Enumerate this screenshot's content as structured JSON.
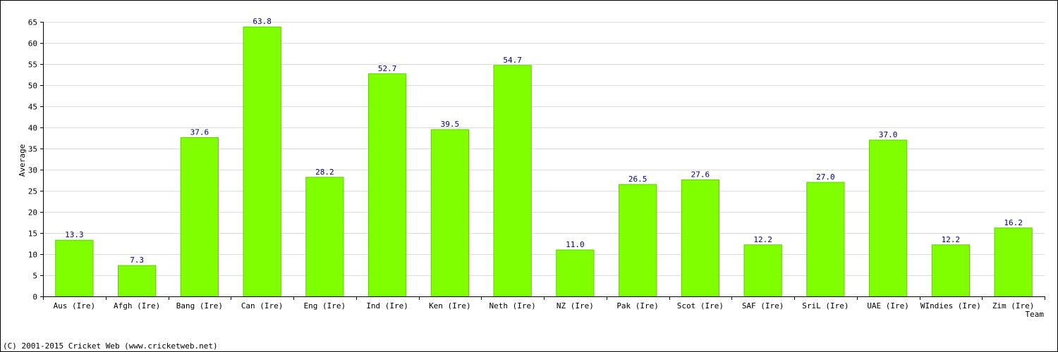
{
  "chart_data": {
    "type": "bar",
    "xlabel": "Team",
    "ylabel": "Average",
    "ylim": [
      0,
      65
    ],
    "ytick_step": 5,
    "grid": true,
    "categories": [
      "Aus (Ire)",
      "Afgh (Ire)",
      "Bang (Ire)",
      "Can (Ire)",
      "Eng (Ire)",
      "Ind (Ire)",
      "Ken (Ire)",
      "Neth (Ire)",
      "NZ (Ire)",
      "Pak (Ire)",
      "Scot (Ire)",
      "SAF (Ire)",
      "SriL (Ire)",
      "UAE (Ire)",
      "WIndies (Ire)",
      "Zim (Ire)"
    ],
    "values": [
      13.3,
      7.3,
      37.6,
      63.8,
      28.2,
      52.7,
      39.5,
      54.7,
      11.0,
      26.5,
      27.6,
      12.2,
      27.0,
      37.0,
      12.2,
      16.2
    ],
    "data_labels": [
      "13.3",
      "7.3",
      "37.6",
      "63.8",
      "28.2",
      "52.7",
      "39.5",
      "54.7",
      "11.0",
      "26.5",
      "27.6",
      "12.2",
      "27.0",
      "37.0",
      "12.2",
      "16.2"
    ],
    "bar_color": "#80ff00",
    "bar_edge_color": "#66cc00",
    "label_color": "#000080"
  },
  "footer": "(C) 2001-2015 Cricket Web (www.cricketweb.net)"
}
